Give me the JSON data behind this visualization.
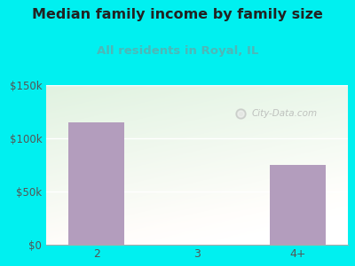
{
  "title": "Median family income by family size",
  "subtitle": "All residents in Royal, IL",
  "categories": [
    "2",
    "3",
    "4+"
  ],
  "values": [
    115000,
    0,
    75000
  ],
  "bar_color": "#b39dbd",
  "title_fontsize": 11.5,
  "subtitle_fontsize": 9.5,
  "subtitle_color": "#4db8b8",
  "title_color": "#222222",
  "tick_color": "#555555",
  "background_outer": "#00f0f0",
  "ylim": [
    0,
    150000
  ],
  "yticks": [
    0,
    50000,
    100000,
    150000
  ],
  "ytick_labels": [
    "$0",
    "$50k",
    "$100k",
    "$150k"
  ],
  "watermark": "City-Data.com",
  "grid_color": "#cccccc"
}
